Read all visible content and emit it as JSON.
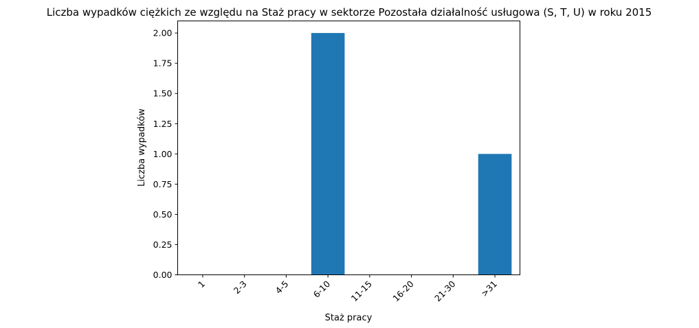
{
  "chart_data": {
    "type": "bar",
    "title": "Liczba wypadków ciężkich ze względu na Staż pracy w sektorze Pozostała działalność usługowa  (S, T, U)   w roku 2015",
    "xlabel": "Staż pracy",
    "ylabel": "Liczba wypadków",
    "categories": [
      "1",
      "2-3",
      "4-5",
      "6-10",
      "11-15",
      "16-20",
      "21-30",
      ">31"
    ],
    "values": [
      0,
      0,
      0,
      2,
      0,
      0,
      0,
      1
    ],
    "ylim": [
      0,
      2.1
    ],
    "yticks": [
      "0.00",
      "0.25",
      "0.50",
      "0.75",
      "1.00",
      "1.25",
      "1.50",
      "1.75",
      "2.00"
    ],
    "bar_color": "#1f77b4",
    "grid": false
  }
}
